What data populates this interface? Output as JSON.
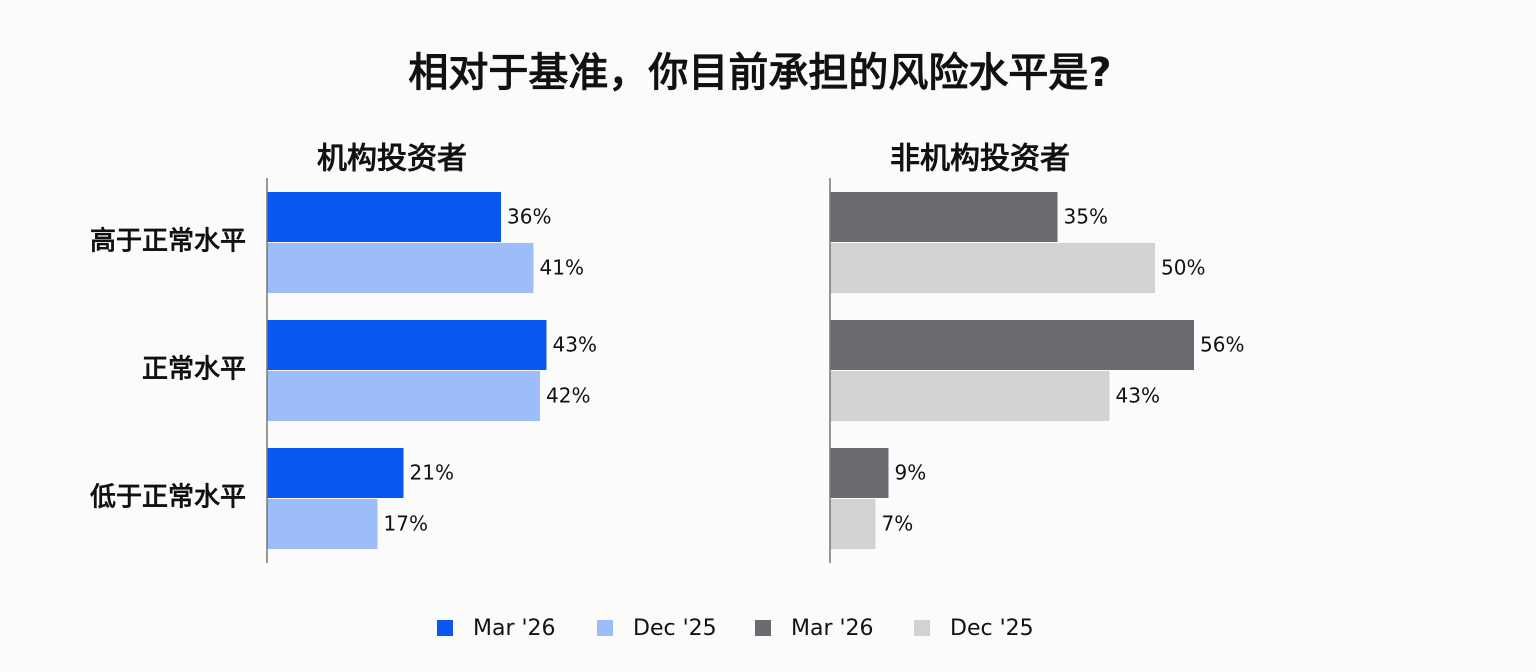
{
  "title": "相对于基准，你目前承担的风险水平是?",
  "chart_data": [
    {
      "type": "bar",
      "subtitle": "机构投资者",
      "categories": [
        "高于正常水平",
        "正常水平",
        "低于正常水平"
      ],
      "series": [
        {
          "name": "Mar '26",
          "color": "#0a57f0",
          "values": [
            36,
            43,
            21
          ],
          "value_labels": [
            "36%",
            "43%",
            "21%"
          ]
        },
        {
          "name": "Dec '25",
          "color": "#9ebcf8",
          "values": [
            41,
            42,
            17
          ],
          "value_labels": [
            "41%",
            "42%",
            "17%"
          ]
        }
      ],
      "xlim": [
        0,
        60
      ]
    },
    {
      "type": "bar",
      "subtitle": "非机构投资者",
      "categories": [
        null,
        null,
        null
      ],
      "series": [
        {
          "name": "Mar '26",
          "color": "#6a6b6f",
          "values": [
            35,
            56,
            9
          ],
          "value_labels": [
            "35%",
            "56%",
            "9%"
          ]
        },
        {
          "name": "Dec '25",
          "color": "#d2d2d4",
          "values": [
            50,
            43,
            7
          ],
          "value_labels": [
            "50%",
            "43%",
            "7%"
          ]
        }
      ],
      "xlim": [
        0,
        60
      ]
    }
  ]
}
